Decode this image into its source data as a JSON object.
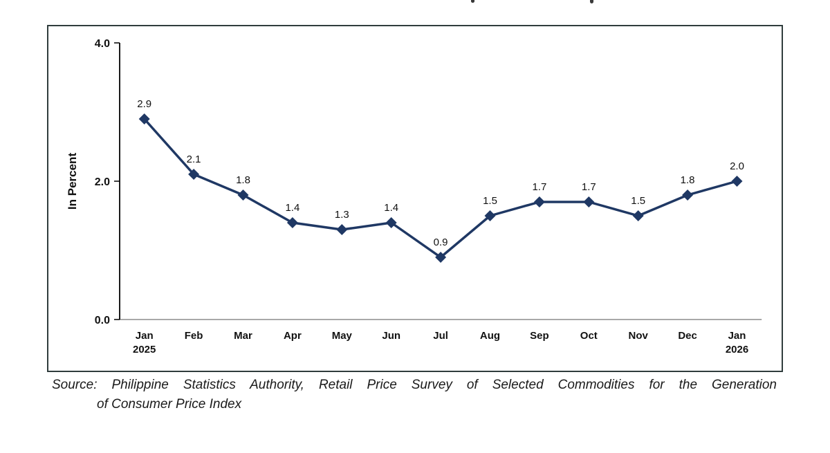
{
  "chart_data": {
    "type": "line",
    "title": "",
    "ylabel": "In Percent",
    "xlabel": "",
    "ylim": [
      0,
      4
    ],
    "yticks": [
      0,
      2,
      4
    ],
    "ytick_labels": [
      "0.0",
      "2.0",
      "4.0"
    ],
    "categories": [
      "Jan",
      "Feb",
      "Mar",
      "Apr",
      "May",
      "Jun",
      "Jul",
      "Aug",
      "Sep",
      "Oct",
      "Nov",
      "Dec",
      "Jan"
    ],
    "category_sublabels": [
      "2025",
      "",
      "",
      "",
      "",
      "",
      "",
      "",
      "",
      "",
      "",
      "",
      "2026"
    ],
    "values": [
      2.9,
      2.1,
      1.8,
      1.4,
      1.3,
      1.4,
      0.9,
      1.5,
      1.7,
      1.7,
      1.5,
      1.8,
      2.0
    ],
    "data_labels": [
      "2.9",
      "2.1",
      "1.8",
      "1.4",
      "1.3",
      "1.4",
      "0.9",
      "1.5",
      "1.7",
      "1.7",
      "1.5",
      "1.8",
      "2.0"
    ],
    "grid": false,
    "legend_position": "none",
    "marker": "diamond",
    "colors": {
      "series": "#1f3864",
      "y_axis": "#000000",
      "x_axis_line": "#8c8c8c",
      "label_text": "#111111"
    }
  },
  "source_note": {
    "line1": "Source: Philippine Statistics Authority, Retail Price Survey of Selected Commodities for the Generation",
    "line2": "of Consumer Price Index"
  }
}
